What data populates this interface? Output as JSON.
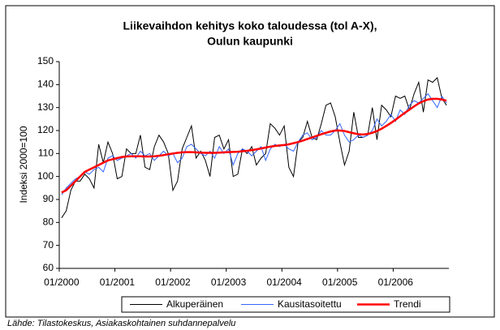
{
  "chart_data": {
    "type": "line",
    "title": [
      "Liikevaihdon kehitys koko taloudessa (tol A-X),",
      "Oulun kaupunki"
    ],
    "y_label": "Indeksi 2000=100",
    "source": "Lähde: Tilastokeskus, Asiakaskohtainen suhdannepalvelu",
    "categories": [
      "01/2000",
      null,
      null,
      null,
      null,
      null,
      null,
      null,
      null,
      null,
      null,
      null,
      "01/2001",
      null,
      null,
      null,
      null,
      null,
      null,
      null,
      null,
      null,
      null,
      null,
      "01/2002",
      null,
      null,
      null,
      null,
      null,
      null,
      null,
      null,
      null,
      null,
      null,
      "01/2003",
      null,
      null,
      null,
      null,
      null,
      null,
      null,
      null,
      null,
      null,
      null,
      "01/2004",
      null,
      null,
      null,
      null,
      null,
      null,
      null,
      null,
      null,
      null,
      null,
      "01/2005",
      null,
      null,
      null,
      null,
      null,
      null,
      null,
      null,
      null,
      null,
      null,
      "01/2006",
      null,
      null,
      null,
      null,
      null,
      null,
      null,
      null,
      null,
      null,
      null
    ],
    "series": [
      {
        "name": "Alkuperäinen",
        "color": "#000000",
        "values": [
          82,
          85,
          94,
          98,
          98,
          101,
          99,
          95,
          114,
          106,
          115,
          110,
          99,
          100,
          112,
          110,
          110,
          118,
          104,
          103,
          113,
          118,
          115,
          110,
          94,
          98,
          112,
          117,
          122,
          108,
          111,
          107,
          100,
          117,
          118,
          112,
          116,
          100,
          101,
          112,
          110,
          113,
          105,
          108,
          110,
          123,
          121,
          118,
          122,
          104,
          100,
          115,
          117,
          124,
          117,
          116,
          123,
          131,
          132,
          126,
          115,
          105,
          111,
          128,
          117,
          117,
          118,
          130,
          116,
          131,
          129,
          126,
          135,
          134,
          135,
          129,
          136,
          141,
          128,
          142,
          141,
          143,
          134,
          131
        ]
      },
      {
        "name": "Kausitasoitettu",
        "color": "#3366ff",
        "values": [
          92,
          95,
          97,
          99,
          100,
          102,
          101,
          103,
          104,
          102,
          108,
          109,
          107,
          108,
          109,
          110,
          108,
          111,
          109,
          110,
          107,
          109,
          111,
          109,
          110,
          106,
          108,
          113,
          114,
          112,
          110,
          109,
          111,
          108,
          113,
          110,
          112,
          105,
          110,
          112,
          111,
          109,
          111,
          113,
          107,
          112,
          114,
          113,
          114,
          112,
          111,
          115,
          118,
          119,
          116,
          117,
          120,
          118,
          118,
          120,
          123,
          118,
          115,
          116,
          118,
          117,
          118,
          120,
          125,
          122,
          124,
          127,
          124,
          129,
          127,
          131,
          133,
          132,
          134,
          136,
          133,
          130,
          135,
          132
        ]
      },
      {
        "name": "Trendi",
        "color": "#ff0000",
        "values": [
          93,
          94,
          96,
          98,
          100,
          102,
          103,
          104,
          105,
          106,
          107,
          107.5,
          108,
          108.5,
          108.7,
          108.8,
          108.8,
          108.8,
          108.7,
          108.7,
          108.8,
          109,
          109.3,
          109.7,
          110,
          110.3,
          110.5,
          110.6,
          110.6,
          110.5,
          110.4,
          110.3,
          110.3,
          110.3,
          110.4,
          110.5,
          110.6,
          110.7,
          110.8,
          111,
          111.2,
          111.5,
          111.8,
          112.2,
          112.6,
          113,
          113.3,
          113.5,
          113.7,
          114,
          114.5,
          115,
          115.6,
          116.3,
          117,
          117.7,
          118.4,
          119,
          119.6,
          120,
          120,
          119.8,
          119.3,
          118.8,
          118.4,
          118.3,
          118.5,
          119,
          119.8,
          120.8,
          122,
          123.3,
          124.7,
          126.2,
          127.7,
          129.1,
          130.5,
          131.8,
          132.8,
          133.5,
          133.8,
          133.8,
          133.5,
          133
        ]
      }
    ],
    "ylim": [
      60,
      150
    ],
    "yticks": [
      60,
      70,
      80,
      90,
      100,
      110,
      120,
      130,
      140,
      150
    ],
    "grid": false,
    "legend": "bottom"
  }
}
